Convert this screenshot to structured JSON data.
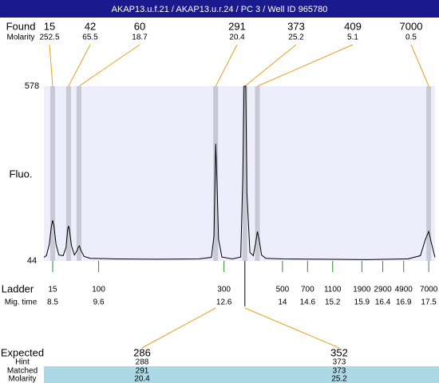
{
  "header": {
    "title": "AKAP13.u.f.21 / AKAP13.u.r.24 / PC 3 / Well ID 965780"
  },
  "chart_data": {
    "type": "electropherogram",
    "found_label": "Found",
    "molarity_label": "Molarity",
    "ylabel": "Fluo.",
    "ladder_label": "Ladder",
    "migtime_label": "Mig. time",
    "ylim": [
      44,
      578
    ],
    "yticks": [
      44,
      578
    ],
    "xlim": [
      8.29,
      17.65
    ],
    "peaks": [
      {
        "size": 15,
        "molarity": 252.5,
        "x": 8.5
      },
      {
        "size": 42,
        "molarity": 65.5,
        "x": 8.88
      },
      {
        "size": 60,
        "molarity": 18.7,
        "x": 9.13
      },
      {
        "size": 291,
        "molarity": 20.4,
        "x": 12.4
      },
      {
        "size": 373,
        "molarity": 25.2,
        "x": 13.1
      },
      {
        "size": 409,
        "molarity": 5.1,
        "x": 13.4
      },
      {
        "size": 7000,
        "molarity": 0.5,
        "x": 17.5
      }
    ],
    "ladder": [
      {
        "size": 15,
        "mig_time": 8.5
      },
      {
        "size": 100,
        "mig_time": 9.6
      },
      {
        "size": 300,
        "mig_time": 12.6
      },
      {
        "size": 500,
        "mig_time": 14
      },
      {
        "size": 700,
        "mig_time": 14.6
      },
      {
        "size": 1100,
        "mig_time": 15.2
      },
      {
        "size": 1900,
        "mig_time": 15.9
      },
      {
        "size": 2900,
        "mig_time": 16.4
      },
      {
        "size": 4900,
        "mig_time": 16.9
      },
      {
        "size": 7000,
        "mig_time": 17.5
      }
    ],
    "trace": {
      "x": [
        8.29,
        8.35,
        8.42,
        8.47,
        8.5,
        8.53,
        8.58,
        8.65,
        8.75,
        8.82,
        8.86,
        8.88,
        8.9,
        8.95,
        9.02,
        9.08,
        9.12,
        9.14,
        9.17,
        9.25,
        9.4,
        10,
        11,
        12,
        12.3,
        12.36,
        12.4,
        12.43,
        12.47,
        12.55,
        12.8,
        13.0,
        13.05,
        13.08,
        13.1,
        13.12,
        13.15,
        13.22,
        13.3,
        13.36,
        13.4,
        13.44,
        13.5,
        13.6,
        14,
        15,
        16,
        17,
        17.3,
        17.42,
        17.5,
        17.56,
        17.65
      ],
      "y": [
        55,
        60,
        95,
        150,
        168,
        150,
        95,
        62,
        60,
        85,
        140,
        151,
        140,
        90,
        62,
        75,
        88,
        90,
        78,
        58,
        52,
        50,
        49,
        50,
        55,
        120,
        402,
        300,
        110,
        56,
        50,
        56,
        300,
        578,
        578,
        578,
        250,
        70,
        60,
        100,
        134,
        110,
        62,
        52,
        50,
        49,
        48,
        50,
        60,
        110,
        134,
        100,
        55
      ]
    }
  },
  "expected": {
    "label": "Expected",
    "hint_label": "Hint",
    "matched_label": "Matched",
    "molarity_label": "Molarity",
    "columns": [
      {
        "expected": 286,
        "hint": 288,
        "matched": 291,
        "molarity": 20.4
      },
      {
        "expected": 352,
        "hint": 373,
        "matched": 373,
        "molarity": 25.2
      }
    ]
  }
}
